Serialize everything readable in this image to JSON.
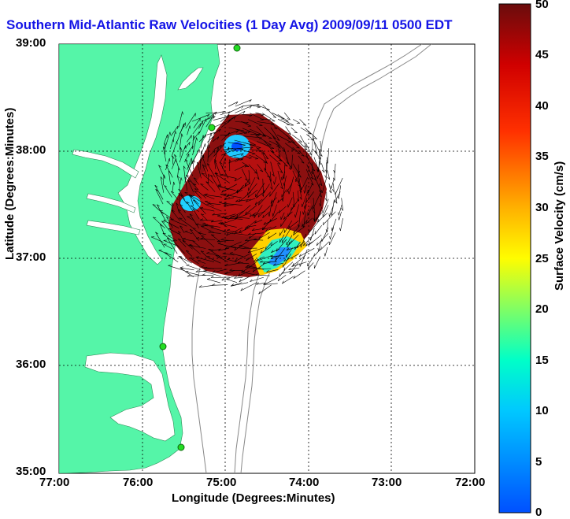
{
  "title": "Southern Mid-Atlantic Raw Velocities (1 Day Avg) 2009/09/11 0500 EDT",
  "axes": {
    "xlabel": "Longitude (Degrees:Minutes)",
    "ylabel": "Latitude (Degrees:Minutes)",
    "x_ticks": [
      "77:00",
      "76:00",
      "75:00",
      "74:00",
      "73:00",
      "72:00"
    ],
    "y_ticks": [
      "39:00",
      "38:00",
      "37:00",
      "36:00",
      "35:00"
    ]
  },
  "colorbar": {
    "label": "Surface Velocity (cm/s)",
    "ticks": [
      "50",
      "45",
      "40",
      "35",
      "30",
      "25",
      "20",
      "15",
      "10",
      "5",
      "0"
    ],
    "min": 0,
    "max": 50
  },
  "colors": {
    "land": "#55f5a8",
    "title": "#1414e6",
    "high_velocity": "#8b1010"
  },
  "chart_data": {
    "type": "map",
    "x_range": [
      "77:00",
      "72:00"
    ],
    "y_range": [
      "35:00",
      "39:00"
    ],
    "grid": true
  }
}
